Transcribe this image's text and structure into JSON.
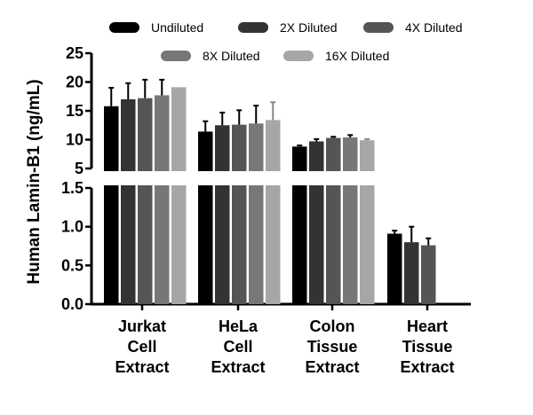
{
  "chart_data": {
    "type": "bar",
    "ylabel": "Human Lamin-B1 (ng/mL)",
    "xlabel": "",
    "categories": [
      [
        "Jurkat",
        "Cell",
        "Extract"
      ],
      [
        "HeLa",
        "Cell",
        "Extract"
      ],
      [
        "Colon",
        "Tissue",
        "Extract"
      ],
      [
        "Heart",
        "Tissue",
        "Extract"
      ]
    ],
    "axis_break": {
      "lower_range": [
        0,
        1.5
      ],
      "upper_range": [
        5,
        25
      ],
      "lower_ticks": [
        "0.0",
        "0.5",
        "1.0",
        "1.5"
      ],
      "upper_ticks": [
        "5",
        "10",
        "15",
        "20",
        "25"
      ]
    },
    "legend_position": "top",
    "series": [
      {
        "name": "Undiluted",
        "color": "#000000",
        "values": [
          15.8,
          11.4,
          8.8,
          0.91
        ],
        "errors": [
          3.2,
          1.8,
          0.2,
          0.04
        ]
      },
      {
        "name": "2X Diluted",
        "color": "#333333",
        "values": [
          17.0,
          12.5,
          9.7,
          0.8
        ],
        "errors": [
          2.8,
          2.2,
          0.4,
          0.2
        ]
      },
      {
        "name": "4X Diluted",
        "color": "#555555",
        "values": [
          17.2,
          12.6,
          10.3,
          0.76
        ],
        "errors": [
          3.2,
          2.5,
          0.2,
          0.09
        ]
      },
      {
        "name": "8X Diluted",
        "color": "#777777",
        "values": [
          17.7,
          12.8,
          10.4,
          null
        ],
        "errors": [
          2.7,
          3.1,
          0.4,
          0
        ]
      },
      {
        "name": "16X Diluted",
        "color": "#a6a6a6",
        "values": [
          19.1,
          13.4,
          9.9,
          null
        ],
        "errors": [
          0,
          3.1,
          0.2,
          0
        ]
      }
    ]
  }
}
